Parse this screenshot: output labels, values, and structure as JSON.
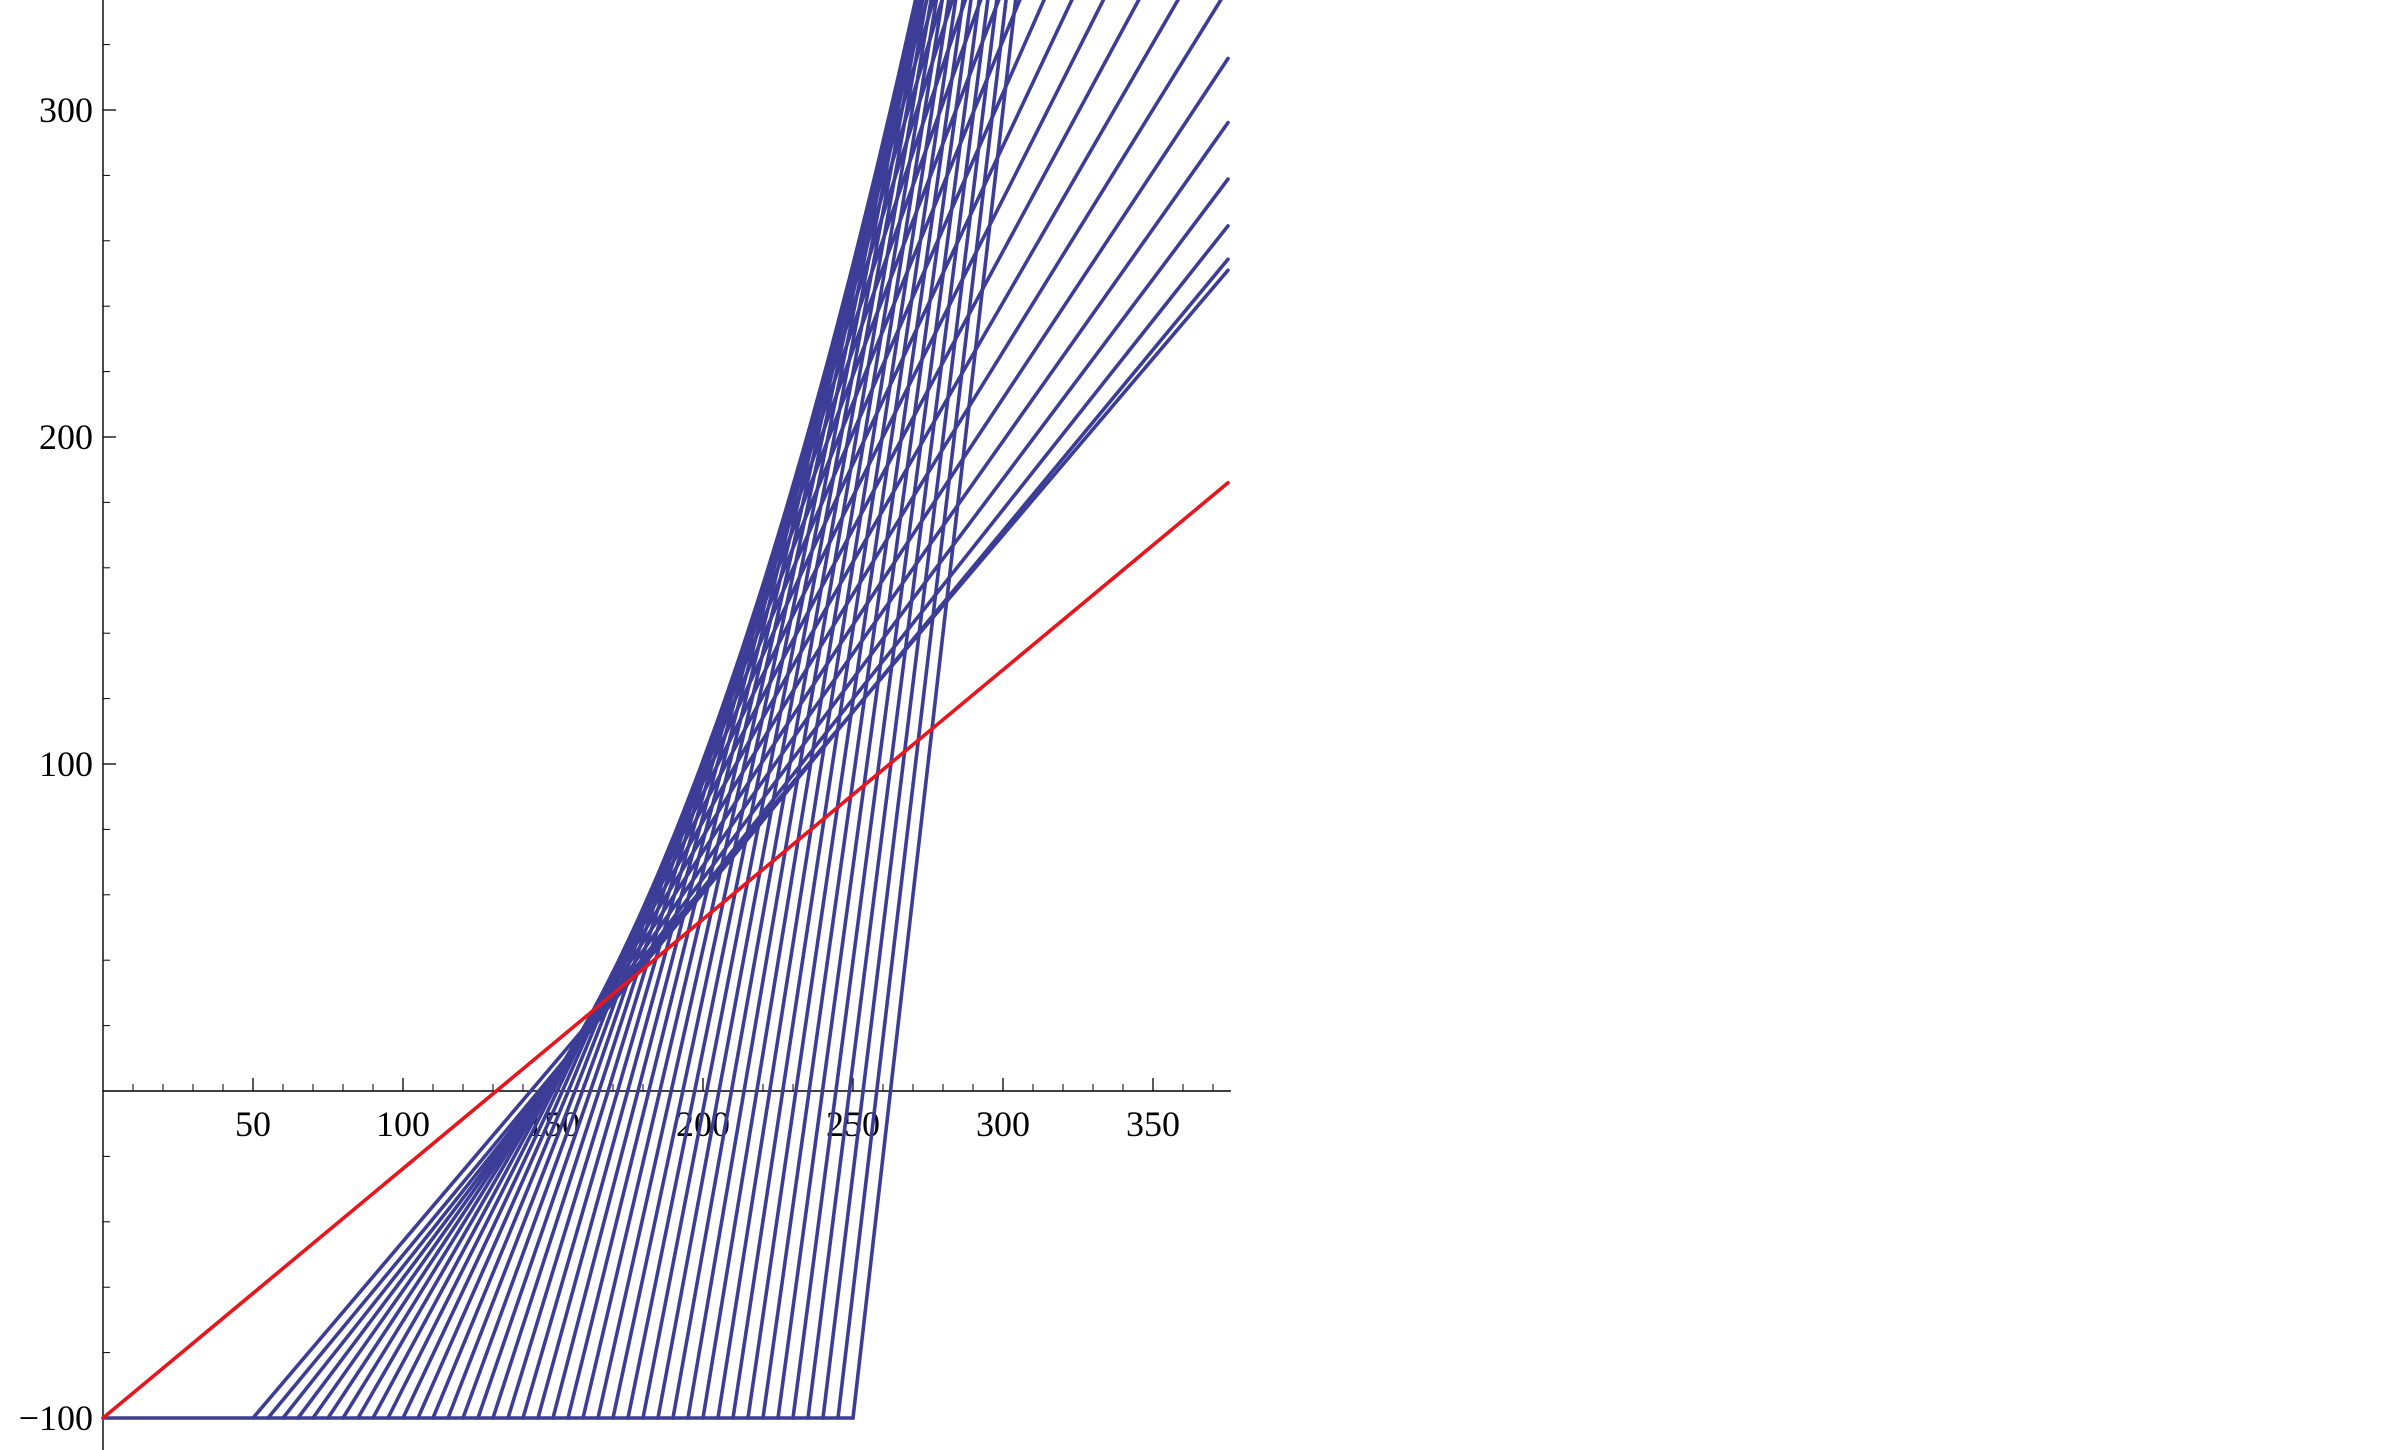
{
  "chart_data": {
    "type": "line",
    "title": "",
    "xlabel": "",
    "ylabel": "",
    "xlim": [
      0,
      375
    ],
    "ylim": [
      -100,
      330
    ],
    "x_ticks": [
      {
        "value": 50,
        "label": "50"
      },
      {
        "value": 100,
        "label": "100"
      },
      {
        "value": 150,
        "label": "150"
      },
      {
        "value": 200,
        "label": "200"
      },
      {
        "value": 250,
        "label": "250"
      },
      {
        "value": 300,
        "label": "300"
      },
      {
        "value": 350,
        "label": "350"
      }
    ],
    "y_ticks": [
      {
        "value": -100,
        "label": "−100"
      },
      {
        "value": 100,
        "label": "100"
      },
      {
        "value": 200,
        "label": "200"
      },
      {
        "value": 300,
        "label": "300"
      }
    ],
    "grid": false,
    "legend": "none",
    "colors": {
      "red": "#e8151c",
      "blue": "#3c3d96"
    },
    "line_family": {
      "description_hidden": true,
      "baseline_y": -100,
      "start_x_min": 50,
      "start_x_max": 250,
      "x_end": 375,
      "count": 41,
      "slope_min": 1.08,
      "slope_max": 8.0,
      "curvature": 1.5
    },
    "series": [
      {
        "color": "red",
        "points": [
          [
            0,
            -100
          ],
          [
            375,
            186
          ]
        ]
      }
    ]
  }
}
